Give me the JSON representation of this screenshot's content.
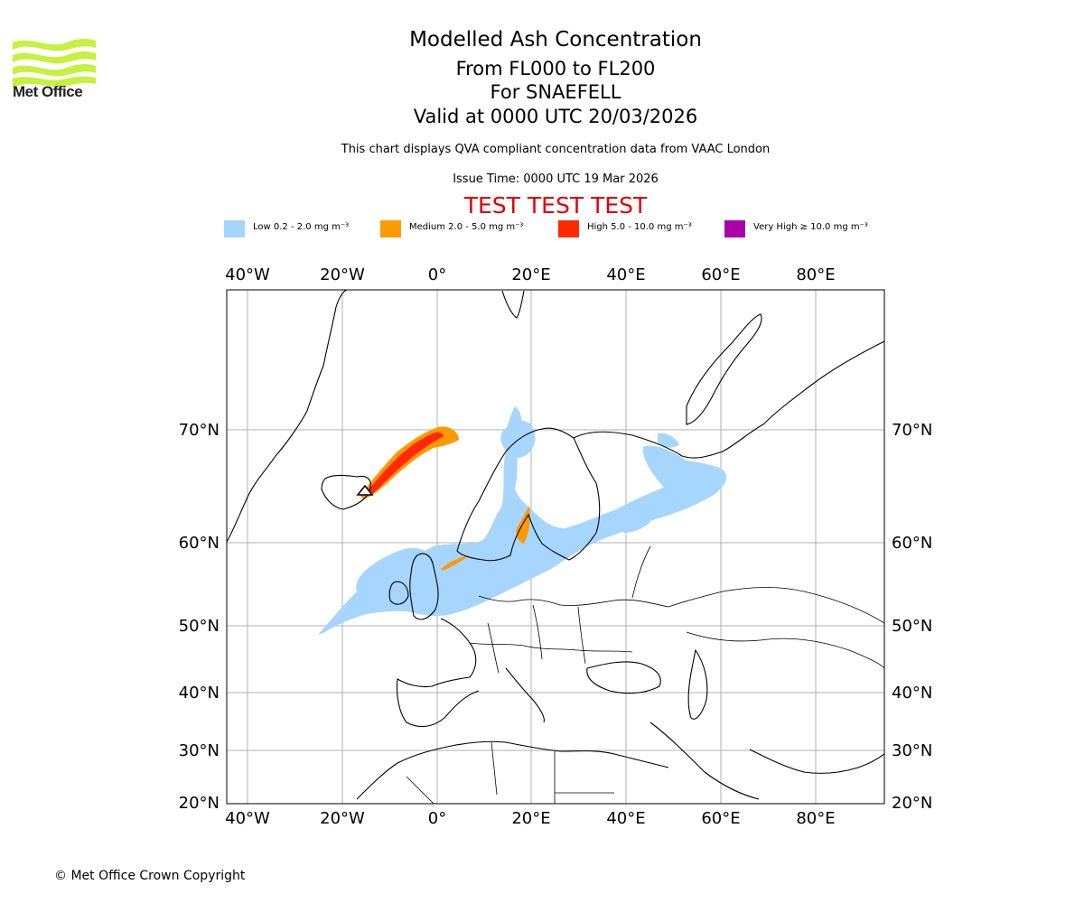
{
  "header": {
    "logo_text": "Met Office",
    "title": "Modelled Ash Concentration",
    "lines": [
      "From FL000 to FL200",
      "For SNAEFELL",
      "Valid at 0000 UTC 20/03/2026"
    ],
    "description": "This chart displays QVA compliant concentration data from VAAC London",
    "issue_time": "Issue Time: 0000 UTC 19 Mar 2026",
    "banner": "TEST TEST TEST"
  },
  "legend": [
    {
      "label": "Low 0.2 - 2.0 mg m⁻³",
      "color": "#a6d5fd"
    },
    {
      "label": "Medium 2.0 - 5.0 mg m⁻³",
      "color": "#fe9900"
    },
    {
      "label": "High 5.0 - 10.0 mg m⁻³",
      "color": "#fe2a00"
    },
    {
      "label": "Very High ≥ 10.0 mg m⁻³",
      "color": "#aa00aa"
    }
  ],
  "map": {
    "lon_labels": [
      "40°W",
      "20°W",
      "0°",
      "20°E",
      "40°E",
      "60°E",
      "80°E"
    ],
    "lat_labels": [
      "70°N",
      "60°N",
      "50°N",
      "40°N",
      "30°N",
      "20°N"
    ],
    "volcano": "SNAEFELL"
  },
  "footer": {
    "copyright": "© Met Office Crown Copyright"
  }
}
